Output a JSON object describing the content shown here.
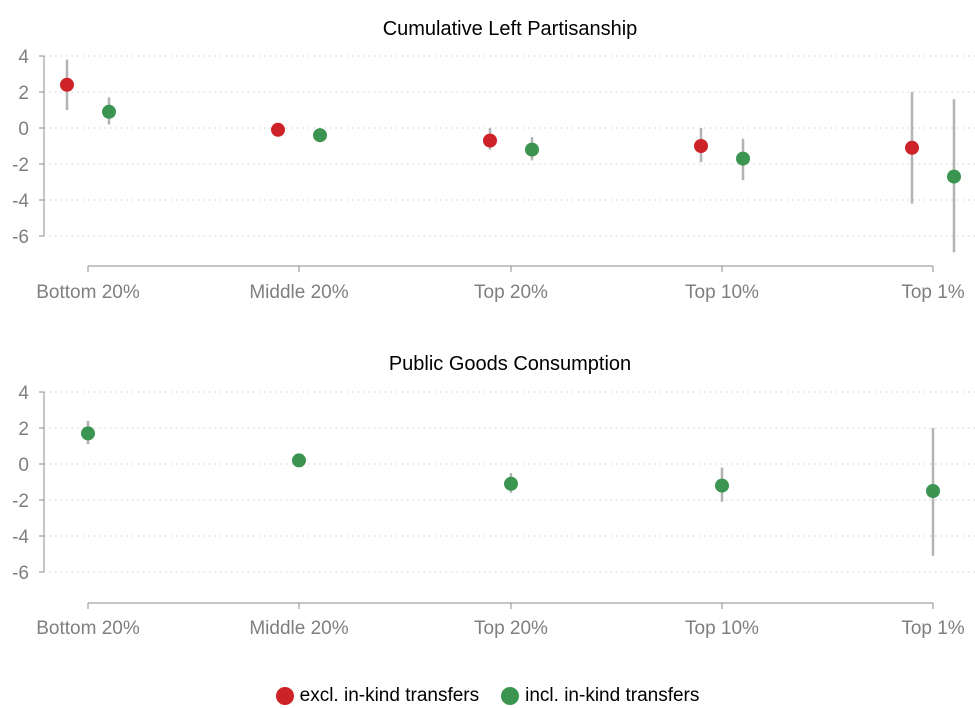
{
  "legend": {
    "items": [
      {
        "label": "excl. in-kind transfers",
        "color": "#cc2228"
      },
      {
        "label": "incl. in-kind transfers",
        "color": "#3b9450"
      }
    ]
  },
  "colors": {
    "ci": "#b3b3b3",
    "grid": "#cfcfcf",
    "axis": "#8c8c8c",
    "tick_label": "#7f7f7f"
  },
  "chart_data": [
    {
      "type": "scatter",
      "subtype": "point-with-error-bars",
      "title": "Cumulative Left Partisanship",
      "categories": [
        "Bottom 20%",
        "Middle 20%",
        "Top 20%",
        "Top 10%",
        "Top 1%"
      ],
      "yticks": [
        4,
        2,
        0,
        -2,
        -4,
        -6
      ],
      "ylim": [
        -7.5,
        4
      ],
      "grid": "horizontal dotted",
      "series": [
        {
          "name": "excl. in-kind transfers",
          "color": "#cc2228",
          "values": [
            2.4,
            -0.1,
            -0.7,
            -1.0,
            -1.1
          ],
          "ci_low": [
            1.0,
            -0.2,
            -1.2,
            -1.9,
            -4.2
          ],
          "ci_high": [
            3.8,
            0.0,
            0.0,
            0.0,
            2.0
          ]
        },
        {
          "name": "incl. in-kind transfers",
          "color": "#3b9450",
          "values": [
            0.9,
            -0.4,
            -1.2,
            -1.7,
            -2.7
          ],
          "ci_low": [
            0.2,
            -0.7,
            -1.8,
            -2.9,
            -6.9
          ],
          "ci_high": [
            1.7,
            0.0,
            -0.5,
            -0.6,
            1.6
          ]
        }
      ]
    },
    {
      "type": "scatter",
      "subtype": "point-with-error-bars",
      "title": "Public Goods Consumption",
      "categories": [
        "Bottom 20%",
        "Middle 20%",
        "Top 20%",
        "Top 10%",
        "Top 1%"
      ],
      "yticks": [
        4,
        2,
        0,
        -2,
        -4,
        -6
      ],
      "ylim": [
        -7.5,
        4
      ],
      "grid": "horizontal dotted",
      "series": [
        {
          "name": "incl. in-kind transfers",
          "color": "#3b9450",
          "values": [
            1.7,
            0.2,
            -1.1,
            -1.2,
            -1.5
          ],
          "ci_low": [
            1.1,
            0.1,
            -1.6,
            -2.1,
            -5.1
          ],
          "ci_high": [
            2.4,
            0.4,
            -0.5,
            -0.2,
            2.0
          ]
        }
      ]
    }
  ]
}
